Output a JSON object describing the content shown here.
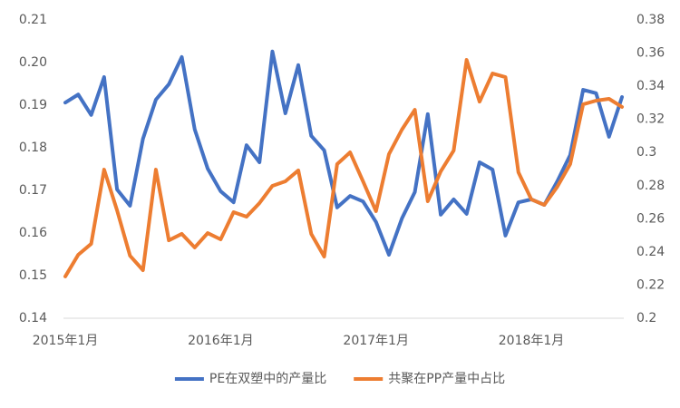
{
  "chart_data": {
    "type": "line",
    "categories": [
      "2015年1月",
      null,
      null,
      null,
      null,
      null,
      null,
      null,
      null,
      null,
      null,
      null,
      "2016年1月",
      null,
      null,
      null,
      null,
      null,
      null,
      null,
      null,
      null,
      null,
      null,
      "2017年1月",
      null,
      null,
      null,
      null,
      null,
      null,
      null,
      null,
      null,
      null,
      null,
      "2018年1月",
      null,
      null,
      null,
      null,
      null,
      null,
      null
    ],
    "series": [
      {
        "name": "PE在双塑中的产量比",
        "color": "#4472c4",
        "axis": "y",
        "values": [
          0.1906,
          0.1925,
          0.1877,
          0.1966,
          0.1702,
          0.1664,
          0.1821,
          0.1913,
          0.1949,
          0.2013,
          0.1843,
          0.1751,
          0.1698,
          0.1672,
          0.1806,
          0.1766,
          0.2026,
          0.1881,
          0.1994,
          0.1828,
          0.1794,
          0.166,
          0.1687,
          0.1674,
          0.1626,
          0.1549,
          0.1634,
          0.1696,
          0.1879,
          0.1643,
          0.1679,
          0.1645,
          0.1766,
          0.1749,
          0.1594,
          0.1672,
          0.1679,
          0.1666,
          0.1721,
          0.1783,
          0.1936,
          0.1928,
          0.1826,
          0.1919
        ]
      },
      {
        "name": "共聚在PP产量中占比",
        "color": "#ed7d31",
        "axis": "y2",
        "values": [
          0.2252,
          0.2383,
          0.2449,
          0.2897,
          0.2651,
          0.2377,
          0.229,
          0.2897,
          0.247,
          0.2509,
          0.2427,
          0.2514,
          0.2476,
          0.264,
          0.2613,
          0.2695,
          0.2799,
          0.2826,
          0.2892,
          0.2509,
          0.2372,
          0.293,
          0.3001,
          0.2826,
          0.2646,
          0.299,
          0.3138,
          0.3258,
          0.2706,
          0.2886,
          0.3012,
          0.3559,
          0.3307,
          0.3477,
          0.3455,
          0.2881,
          0.2717,
          0.2684,
          0.2793,
          0.293,
          0.3291,
          0.3313,
          0.3324,
          0.3275
        ]
      }
    ],
    "ylim": [
      0.14,
      0.21
    ],
    "yticks": [
      0.14,
      0.15,
      0.16,
      0.17,
      0.18,
      0.19,
      {
        "value": 0.2,
        "label": "0.20"
      },
      0.21
    ],
    "y2lim": [
      0.2,
      0.38
    ],
    "y2ticks": [
      0.2,
      0.22,
      0.24,
      0.26,
      0.28,
      0.3,
      0.32,
      0.34,
      0.36,
      0.38
    ],
    "grid": false,
    "legend": "bottom"
  }
}
